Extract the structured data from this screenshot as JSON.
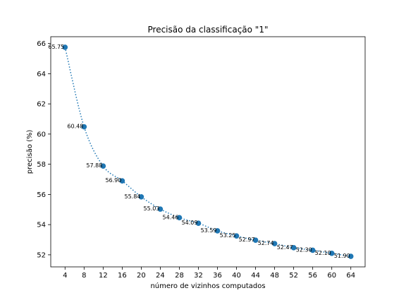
{
  "chart_data": {
    "type": "line",
    "title": "Precisão da classificação \"1\"",
    "xlabel": "número de vizinhos computados",
    "ylabel": "precisão (%)",
    "x": [
      4,
      8,
      12,
      16,
      20,
      24,
      28,
      32,
      36,
      40,
      44,
      48,
      52,
      56,
      60,
      64
    ],
    "series": [
      {
        "values": [
          65.75,
          60.48,
          57.88,
          56.9,
          55.84,
          55.03,
          54.46,
          54.09,
          53.59,
          53.25,
          52.97,
          52.74,
          52.47,
          52.3,
          52.1,
          51.9
        ],
        "labels": [
          "65.75",
          "60.48",
          "57.88",
          "56.90",
          "55.84",
          "55.03",
          "54.46",
          "54.09",
          "53.59",
          "53.25",
          "52.97",
          "52.74",
          "52.47",
          "52.30",
          "52.10",
          "51.90"
        ],
        "color": "#1f77b4",
        "line_style": "dotted",
        "marker": "circle"
      }
    ],
    "xticks": [
      4,
      8,
      12,
      16,
      20,
      24,
      28,
      32,
      36,
      40,
      44,
      48,
      52,
      56,
      60,
      64
    ],
    "yticks": [
      52,
      54,
      56,
      58,
      60,
      62,
      64,
      66
    ],
    "xlim": [
      1,
      67
    ],
    "ylim": [
      51.2,
      66.45
    ],
    "grid": false,
    "legend": "none"
  }
}
